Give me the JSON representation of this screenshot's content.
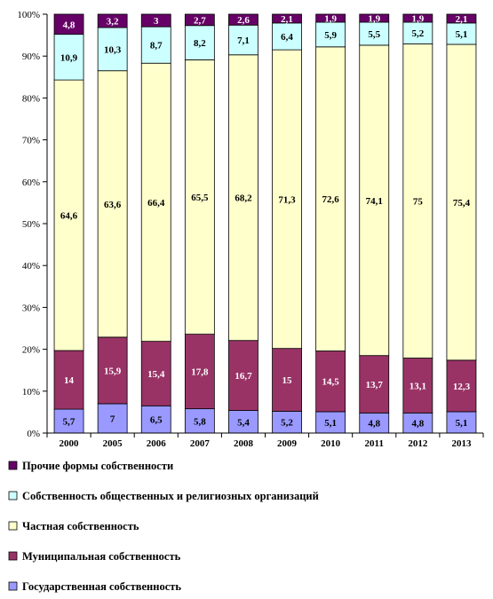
{
  "chart_data": {
    "type": "bar",
    "stacked": true,
    "percent": true,
    "categories": [
      "2000",
      "2005",
      "2006",
      "2007",
      "2008",
      "2009",
      "2010",
      "2011",
      "2012",
      "2013"
    ],
    "series": [
      {
        "name": "Государственная собственность",
        "color": "#9999ff",
        "values": [
          5.7,
          7,
          6.5,
          5.8,
          5.4,
          5.2,
          5.1,
          4.8,
          4.8,
          5.1
        ],
        "labels": [
          "5,7",
          "7",
          "6,5",
          "5,8",
          "5,4",
          "5,2",
          "5,1",
          "4,8",
          "4,8",
          "5,1"
        ]
      },
      {
        "name": "Муниципальная собственность",
        "color": "#993366",
        "values": [
          14,
          15.9,
          15.4,
          17.8,
          16.7,
          15,
          14.5,
          13.7,
          13.1,
          12.3
        ],
        "labels": [
          "14",
          "15,9",
          "15,4",
          "17,8",
          "16,7",
          "15",
          "14,5",
          "13,7",
          "13,1",
          "12,3"
        ]
      },
      {
        "name": "Частная собственность",
        "color": "#ffffcc",
        "values": [
          64.6,
          63.6,
          66.4,
          65.5,
          68.2,
          71.3,
          72.6,
          74.1,
          75,
          75.4
        ],
        "labels": [
          "64,6",
          "63,6",
          "66,4",
          "65,5",
          "68,2",
          "71,3",
          "72,6",
          "74,1",
          "75",
          "75,4"
        ]
      },
      {
        "name": "Собственность общественных и религиозных организаций",
        "color": "#ccffff",
        "values": [
          10.9,
          10.3,
          8.7,
          8.2,
          7.1,
          6.4,
          5.9,
          5.5,
          5.2,
          5.1
        ],
        "labels": [
          "10,9",
          "10,3",
          "8,7",
          "8,2",
          "7,1",
          "6,4",
          "5,9",
          "5,5",
          "5,2",
          "5,1"
        ]
      },
      {
        "name": "Прочие формы собственности",
        "color": "#660066",
        "values": [
          4.8,
          3.2,
          3,
          2.7,
          2.6,
          2.1,
          1.9,
          1.9,
          1.9,
          2.1
        ],
        "labels": [
          "4,8",
          "3,2",
          "3",
          "2,7",
          "2,6",
          "2,1",
          "1,9",
          "1,9",
          "1,9",
          "2,1"
        ]
      }
    ],
    "yticks": [
      "0%",
      "10%",
      "20%",
      "30%",
      "40%",
      "50%",
      "60%",
      "70%",
      "80%",
      "90%",
      "100%"
    ],
    "ylim": [
      0,
      100
    ],
    "grid": false,
    "legend_position": "bottom",
    "legend_order": [
      4,
      3,
      2,
      1,
      0
    ]
  }
}
